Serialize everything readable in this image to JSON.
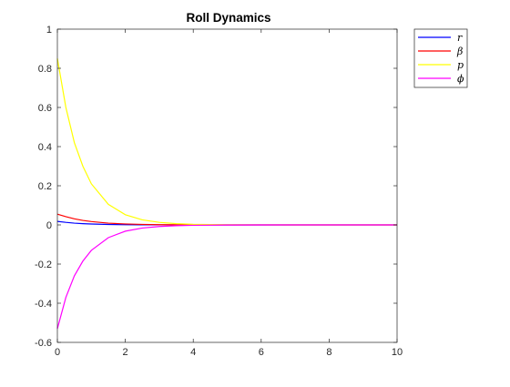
{
  "chart_data": {
    "type": "line",
    "title": "Roll Dynamics",
    "xlabel": "",
    "ylabel": "",
    "xlim": [
      0,
      10
    ],
    "ylim": [
      -0.6,
      1
    ],
    "x_ticks": [
      "0",
      "2",
      "4",
      "6",
      "8",
      "10"
    ],
    "y_ticks": [
      "-0.6",
      "-0.4",
      "-0.2",
      "0",
      "0.2",
      "0.4",
      "0.6",
      "0.8",
      "1"
    ],
    "grid": false,
    "legend_position": "outside top-right",
    "x": [
      0,
      0.25,
      0.5,
      0.75,
      1,
      1.5,
      2,
      2.5,
      3,
      3.5,
      4,
      5,
      6,
      7,
      8,
      9,
      10
    ],
    "series": [
      {
        "name": "r",
        "color": "#0000ff",
        "values": [
          0.018,
          0.013,
          0.009,
          0.0065,
          0.0046,
          0.0024,
          0.0012,
          0.0006,
          0.0003,
          0.0001,
          0.0001,
          0,
          0,
          0,
          0,
          0,
          0
        ]
      },
      {
        "name": "β",
        "color": "#ff0000",
        "values": [
          0.055,
          0.042,
          0.031,
          0.023,
          0.017,
          0.009,
          0.005,
          0.0025,
          0.0013,
          0.0007,
          0.0004,
          0.0001,
          0,
          0,
          0,
          0,
          0
        ]
      },
      {
        "name": "p",
        "color": "#ffff00",
        "values": [
          0.85,
          0.6,
          0.42,
          0.3,
          0.21,
          0.105,
          0.052,
          0.026,
          0.013,
          0.0065,
          0.003,
          0.0008,
          0.0002,
          0,
          0,
          0,
          0
        ]
      },
      {
        "name": "ϕ",
        "color": "#ff00ff",
        "values": [
          -0.53,
          -0.37,
          -0.26,
          -0.185,
          -0.13,
          -0.065,
          -0.032,
          -0.016,
          -0.008,
          -0.004,
          -0.002,
          -0.0005,
          -0.0001,
          0,
          0,
          0,
          0
        ]
      }
    ]
  }
}
